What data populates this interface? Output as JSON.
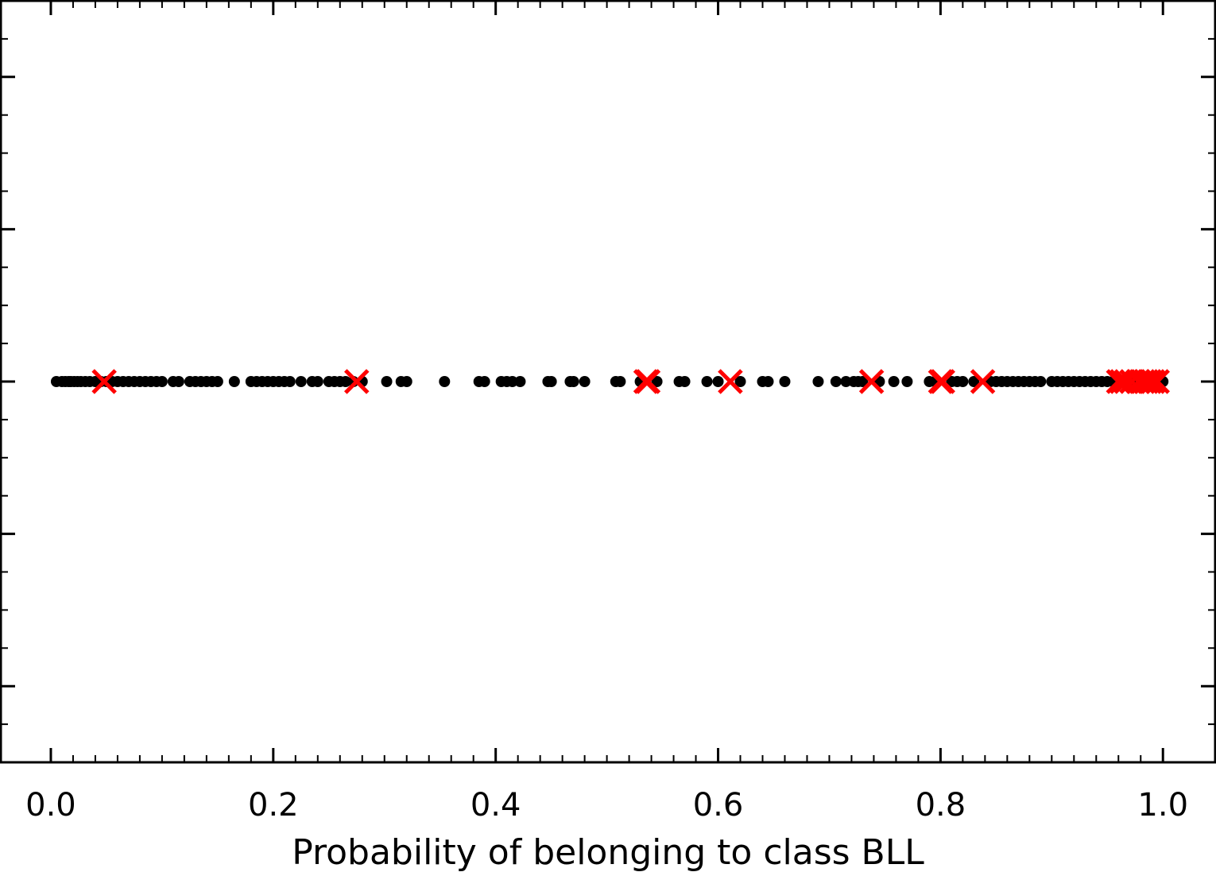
{
  "chart_data": {
    "type": "scatter",
    "title": "",
    "xlabel": "Probability of belonging to class BLL",
    "ylabel": "",
    "xlim": [
      -0.045,
      1.047
    ],
    "ylim": [
      -1.0,
      1.0
    ],
    "x_ticks": [
      0.0,
      0.2,
      0.4,
      0.6,
      0.8,
      1.0
    ],
    "x_tick_labels": [
      "0.0",
      "0.2",
      "0.4",
      "0.6",
      "0.8",
      "1.0"
    ],
    "grid": false,
    "legend": "none",
    "series": [
      {
        "marker": "dot",
        "color": "#000000",
        "y": 0,
        "x": [
          0.005,
          0.01,
          0.013,
          0.016,
          0.018,
          0.021,
          0.024,
          0.027,
          0.031,
          0.035,
          0.04,
          0.045,
          0.05,
          0.055,
          0.06,
          0.065,
          0.07,
          0.075,
          0.08,
          0.085,
          0.09,
          0.095,
          0.1,
          0.11,
          0.115,
          0.125,
          0.13,
          0.135,
          0.14,
          0.145,
          0.15,
          0.165,
          0.18,
          0.185,
          0.19,
          0.195,
          0.2,
          0.205,
          0.21,
          0.215,
          0.225,
          0.235,
          0.24,
          0.25,
          0.255,
          0.26,
          0.265,
          0.272,
          0.28,
          0.302,
          0.315,
          0.32,
          0.354,
          0.385,
          0.39,
          0.405,
          0.41,
          0.415,
          0.422,
          0.447,
          0.45,
          0.467,
          0.47,
          0.48,
          0.508,
          0.512,
          0.53,
          0.545,
          0.565,
          0.57,
          0.59,
          0.6,
          0.62,
          0.64,
          0.645,
          0.66,
          0.69,
          0.706,
          0.715,
          0.722,
          0.726,
          0.73,
          0.745,
          0.758,
          0.77,
          0.79,
          0.795,
          0.81,
          0.815,
          0.82,
          0.83,
          0.845,
          0.85,
          0.855,
          0.86,
          0.865,
          0.87,
          0.875,
          0.88,
          0.885,
          0.89,
          0.9,
          0.905,
          0.91,
          0.915,
          0.92,
          0.925,
          0.93,
          0.935,
          0.94,
          0.945,
          0.95,
          0.955,
          0.96,
          0.965,
          0.97,
          0.975,
          0.98,
          0.985,
          0.99,
          0.995,
          1.0
        ]
      },
      {
        "marker": "x",
        "color": "#ff0000",
        "y": 0,
        "x": [
          0.048,
          0.275,
          0.535,
          0.537,
          0.611,
          0.738,
          0.8,
          0.802,
          0.838,
          0.96,
          0.963,
          0.967,
          0.972,
          0.978,
          0.982,
          0.985,
          0.988,
          0.991,
          0.995
        ]
      }
    ]
  }
}
